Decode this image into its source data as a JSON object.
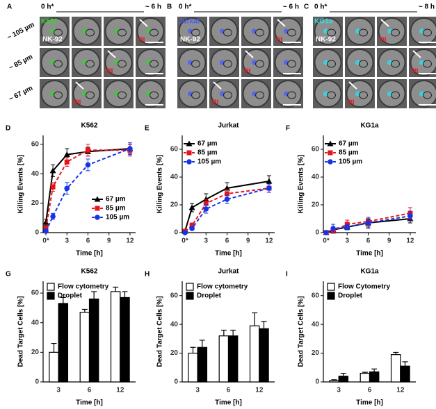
{
  "image_panels": [
    {
      "label": "A",
      "start": "0 h*",
      "end": "~ 6 h",
      "cell": "K562",
      "cell_color": "#39d12f",
      "effector": "NK-92",
      "marker": "PI",
      "rows": [
        "~ 105 µm",
        "~ 85 µm",
        "~ 67 µm"
      ]
    },
    {
      "label": "B",
      "start": "0 h*",
      "end": "~ 6 h",
      "cell": "Jurkat",
      "cell_color": "#4a5cff",
      "effector": "NK-92",
      "marker": "PI"
    },
    {
      "label": "C",
      "start": "0 h*",
      "end": "~ 8 h",
      "cell": "KG1a",
      "cell_color": "#2de0e8",
      "effector": "NK-92",
      "marker": "PI"
    }
  ],
  "chart_data": [
    {
      "type": "line",
      "panel": "D",
      "title": "K562",
      "xlabel": "Time [h]",
      "ylabel": "Killing Events [%]",
      "legend": "lower right",
      "x": [
        0,
        1,
        3,
        6,
        12
      ],
      "xlim": [
        -0.4,
        12.8
      ],
      "xticks": [
        {
          "value": 0,
          "label": "0*"
        },
        3,
        6,
        9,
        12
      ],
      "ylim": [
        0,
        66
      ],
      "yticks": [
        0,
        20,
        40,
        60
      ],
      "series": [
        {
          "name": "67 µm",
          "color": "#000000",
          "linestyle": "solid",
          "marker": "triangle",
          "values": [
            7,
            42,
            53,
            55,
            57
          ],
          "errors": [
            2,
            4,
            4,
            3,
            3
          ]
        },
        {
          "name": "85 µm",
          "color": "#e8141c",
          "linestyle": "dashed",
          "marker": "square",
          "values": [
            3,
            31,
            48,
            56,
            56
          ],
          "errors": [
            1,
            3,
            3,
            4,
            4
          ]
        },
        {
          "name": "105 µm",
          "color": "#1733e6",
          "linestyle": "dashed",
          "marker": "circle",
          "values": [
            1,
            11,
            30,
            46,
            57
          ],
          "errors": [
            1,
            2,
            4,
            4,
            4
          ]
        }
      ]
    },
    {
      "type": "line",
      "panel": "E",
      "title": "Jurkat",
      "xlabel": "Time [h]",
      "ylabel": "Killing Events [%]",
      "legend": "upper left",
      "x": [
        0,
        1,
        3,
        6,
        12
      ],
      "xlim": [
        -0.4,
        12.8
      ],
      "xticks": [
        {
          "value": 0,
          "label": "0*"
        },
        3,
        6,
        9,
        12
      ],
      "ylim": [
        0,
        70
      ],
      "yticks": [
        0,
        20,
        40,
        60
      ],
      "series": [
        {
          "name": "67 µm",
          "color": "#000000",
          "linestyle": "solid",
          "marker": "triangle",
          "values": [
            1,
            18,
            24,
            32,
            37
          ],
          "errors": [
            1,
            3,
            4,
            4,
            4
          ]
        },
        {
          "name": "85 µm",
          "color": "#e8141c",
          "linestyle": "dashed",
          "marker": "square",
          "values": [
            1,
            5,
            21,
            28,
            32
          ],
          "errors": [
            1,
            2,
            3,
            3,
            3
          ]
        },
        {
          "name": "105 µm",
          "color": "#1733e6",
          "linestyle": "dashed",
          "marker": "circle",
          "values": [
            0,
            3,
            17,
            24,
            32
          ],
          "errors": [
            1,
            1,
            3,
            3,
            3
          ]
        }
      ]
    },
    {
      "type": "line",
      "panel": "F",
      "title": "KG1a",
      "xlabel": "Time [h]",
      "ylabel": "Killing Events [%]",
      "legend": "upper left",
      "x": [
        0,
        1,
        3,
        6,
        12
      ],
      "xlim": [
        -0.4,
        12.8
      ],
      "xticks": [
        {
          "value": 0,
          "label": "0*"
        },
        3,
        6,
        9,
        12
      ],
      "ylim": [
        0,
        70
      ],
      "yticks": [
        0,
        20,
        40,
        60
      ],
      "series": [
        {
          "name": "67 µm",
          "color": "#000000",
          "linestyle": "solid",
          "marker": "triangle",
          "values": [
            0,
            2,
            4,
            7,
            10
          ],
          "errors": [
            1,
            1,
            2,
            3,
            3
          ]
        },
        {
          "name": "85 µm",
          "color": "#e8141c",
          "linestyle": "dashed",
          "marker": "square",
          "values": [
            0,
            1,
            6,
            8,
            14
          ],
          "errors": [
            1,
            1,
            3,
            3,
            4
          ]
        },
        {
          "name": "105 µm",
          "color": "#1733e6",
          "linestyle": "dashed",
          "marker": "circle",
          "values": [
            0,
            3,
            4,
            7,
            12
          ],
          "errors": [
            1,
            3,
            2,
            4,
            3
          ]
        }
      ]
    },
    {
      "type": "bar",
      "panel": "G",
      "title": "K562",
      "xlabel": "Time [h]",
      "ylabel": "Dead Target Cells [%]",
      "legend": "upper left",
      "categories": [
        "3",
        "6",
        "12"
      ],
      "ylim": [
        0,
        68
      ],
      "yticks": [
        0,
        20,
        40,
        60
      ],
      "series": [
        {
          "name": "Flow cytometry",
          "color": "#ffffff",
          "values": [
            20,
            47,
            61
          ],
          "errors": [
            6,
            2,
            3
          ]
        },
        {
          "name": "Droplet",
          "color": "#000000",
          "values": [
            53,
            56,
            57
          ],
          "errors": [
            4,
            5,
            4
          ]
        }
      ]
    },
    {
      "type": "bar",
      "panel": "H",
      "title": "Jurkat",
      "xlabel": "Time [h]",
      "ylabel": "Dead Target Cells [%]",
      "legend": "upper left",
      "categories": [
        "3",
        "6",
        "12"
      ],
      "ylim": [
        0,
        70
      ],
      "yticks": [
        0,
        20,
        40,
        60
      ],
      "series": [
        {
          "name": "Flow cytometry",
          "color": "#ffffff",
          "values": [
            20,
            32,
            39
          ],
          "errors": [
            4,
            4,
            9
          ]
        },
        {
          "name": "Droplet",
          "color": "#000000",
          "values": [
            24,
            32,
            37
          ],
          "errors": [
            5,
            4,
            5
          ]
        }
      ]
    },
    {
      "type": "bar",
      "panel": "I",
      "title": "KG1a",
      "xlabel": "Time [h]",
      "ylabel": "Dead Target Cells [%]",
      "legend": "upper left",
      "categories": [
        "3",
        "6",
        "12"
      ],
      "ylim": [
        0,
        70
      ],
      "yticks": [
        0,
        20,
        40,
        60
      ],
      "series": [
        {
          "name": "Flow Cytometry",
          "color": "#ffffff",
          "values": [
            1,
            6,
            19
          ],
          "errors": [
            0.5,
            0.7,
            1.5
          ],
          "errors_note": null
        },
        {
          "name": "Droplet",
          "color": "#000000",
          "values": [
            4,
            7,
            11
          ],
          "errors": [
            2,
            2,
            3
          ]
        }
      ]
    }
  ]
}
